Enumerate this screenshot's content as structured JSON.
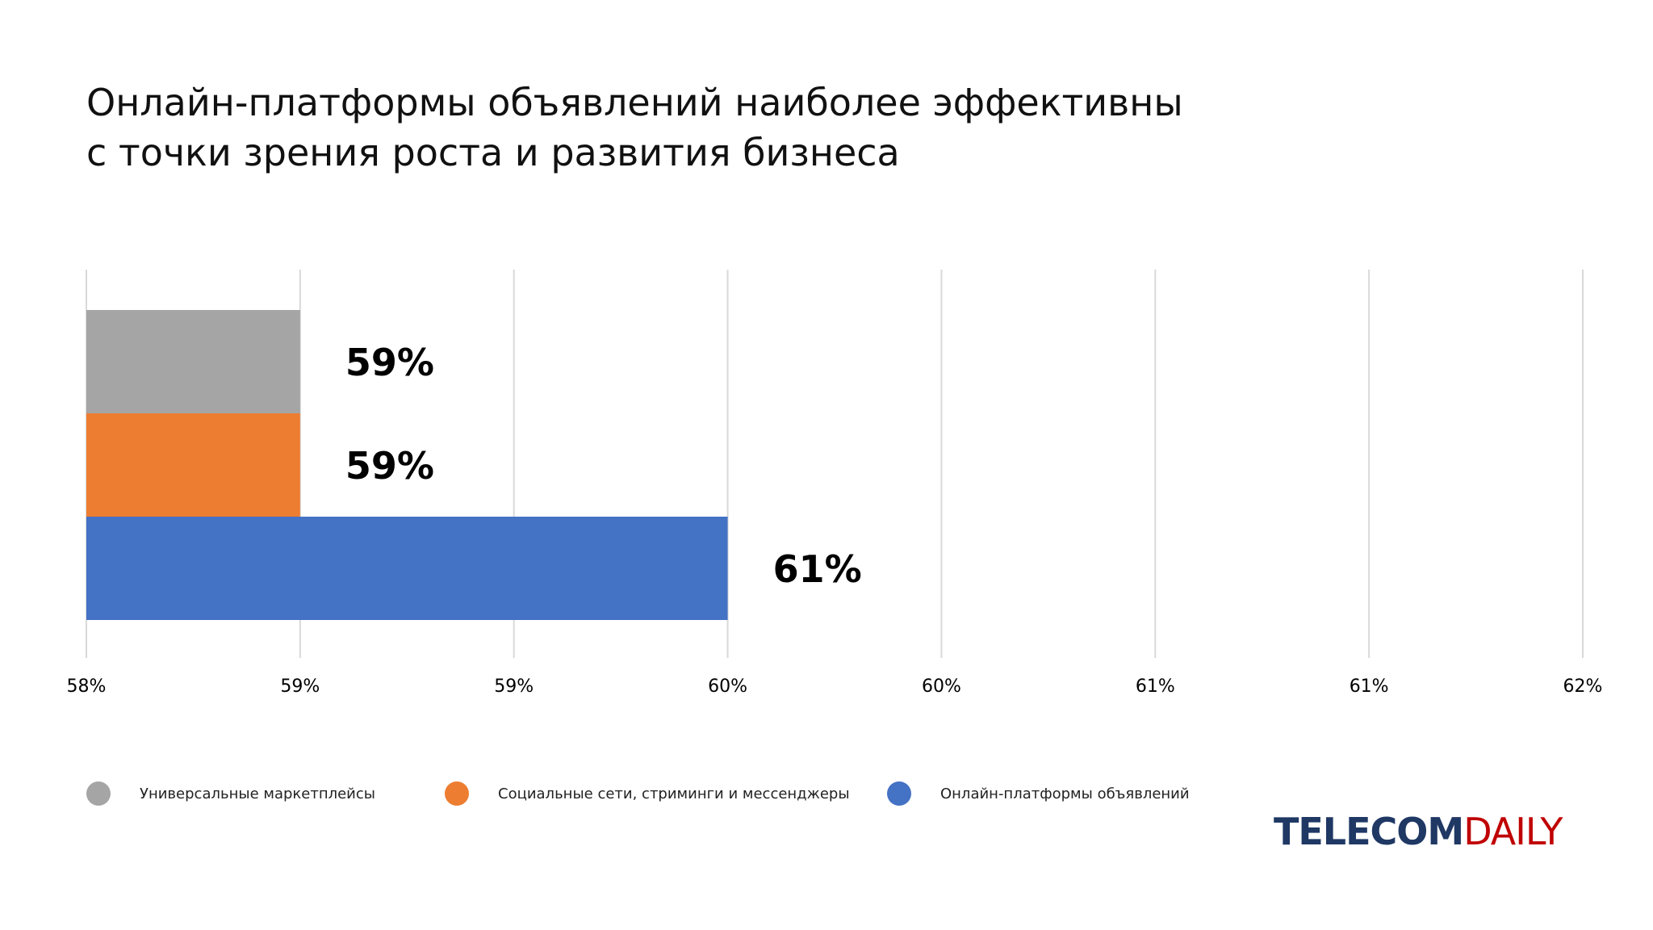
{
  "title_lines": [
    "Онлайн-платформы объявлений наиболее эффективны",
    "с точки зрения роста и развития бизнеса"
  ],
  "chart_data": {
    "type": "bar",
    "orientation": "horizontal",
    "title": "Онлайн-платформы объявлений наиболее эффективны с точки зрения роста и развития бизнеса",
    "categories": [
      "Универсальные маркетплейсы",
      "Социальные сети, стриминги и мессенджеры",
      "Онлайн-платформы объявлений"
    ],
    "values": [
      59,
      59,
      61
    ],
    "value_labels": [
      "59%",
      "59%",
      "61%"
    ],
    "colors": [
      "#A5A5A5",
      "#ED7D31",
      "#4472C4"
    ],
    "xlim": [
      58,
      62
    ],
    "bar_domain": [
      58,
      61
    ],
    "bar_span": [
      1,
      1,
      3
    ],
    "x_tick_labels": [
      "58%",
      "59%",
      "59%",
      "60%",
      "60%",
      "61%",
      "61%",
      "62%"
    ],
    "grid": true,
    "legend_position": "bottom"
  },
  "legend": [
    {
      "label": "Универсальные маркетплейсы",
      "color": "#A5A5A5"
    },
    {
      "label": "Социальные сети, стриминги и мессенджеры",
      "color": "#ED7D31"
    },
    {
      "label": "Онлайн-платформы объявлений",
      "color": "#4472C4"
    }
  ],
  "logo": {
    "part1": "TELECOM",
    "part2": "DAILY",
    "color1": "#1F3864",
    "color2": "#C00000"
  }
}
